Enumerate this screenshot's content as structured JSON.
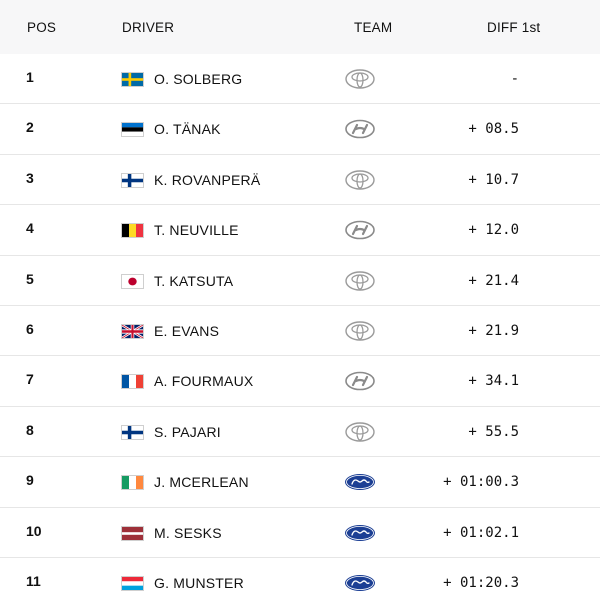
{
  "header": {
    "pos": "POS",
    "driver": "DRIVER",
    "team": "TEAM",
    "diff": "DIFF 1st"
  },
  "rows": [
    {
      "pos": "1",
      "flag": "se",
      "driver": "O. SOLBERG",
      "team_icon": "toyota-logo-icon",
      "diff": "-"
    },
    {
      "pos": "2",
      "flag": "ee",
      "driver": "O. TÄNAK",
      "team_icon": "hyundai-logo-icon",
      "diff": "+ 08.5"
    },
    {
      "pos": "3",
      "flag": "fi",
      "driver": "K. ROVANPERÄ",
      "team_icon": "toyota-logo-icon",
      "diff": "+ 10.7"
    },
    {
      "pos": "4",
      "flag": "be",
      "driver": "T. NEUVILLE",
      "team_icon": "hyundai-logo-icon",
      "diff": "+ 12.0"
    },
    {
      "pos": "5",
      "flag": "jp",
      "driver": "T. KATSUTA",
      "team_icon": "toyota-logo-icon",
      "diff": "+ 21.4"
    },
    {
      "pos": "6",
      "flag": "gb",
      "driver": "E. EVANS",
      "team_icon": "toyota-logo-icon",
      "diff": "+ 21.9"
    },
    {
      "pos": "7",
      "flag": "fr",
      "driver": "A. FOURMAUX",
      "team_icon": "hyundai-logo-icon",
      "diff": "+ 34.1"
    },
    {
      "pos": "8",
      "flag": "fi",
      "driver": "S. PAJARI",
      "team_icon": "toyota-logo-icon",
      "diff": "+ 55.5"
    },
    {
      "pos": "9",
      "flag": "ie",
      "driver": "J. MCERLEAN",
      "team_icon": "ford-logo-icon",
      "diff": "+ 01:00.3"
    },
    {
      "pos": "10",
      "flag": "lv",
      "driver": "M. SESKS",
      "team_icon": "ford-logo-icon",
      "diff": "+ 01:02.1"
    },
    {
      "pos": "11",
      "flag": "lu",
      "driver": "G. MUNSTER",
      "team_icon": "ford-logo-icon",
      "diff": "+ 01:20.3"
    }
  ]
}
